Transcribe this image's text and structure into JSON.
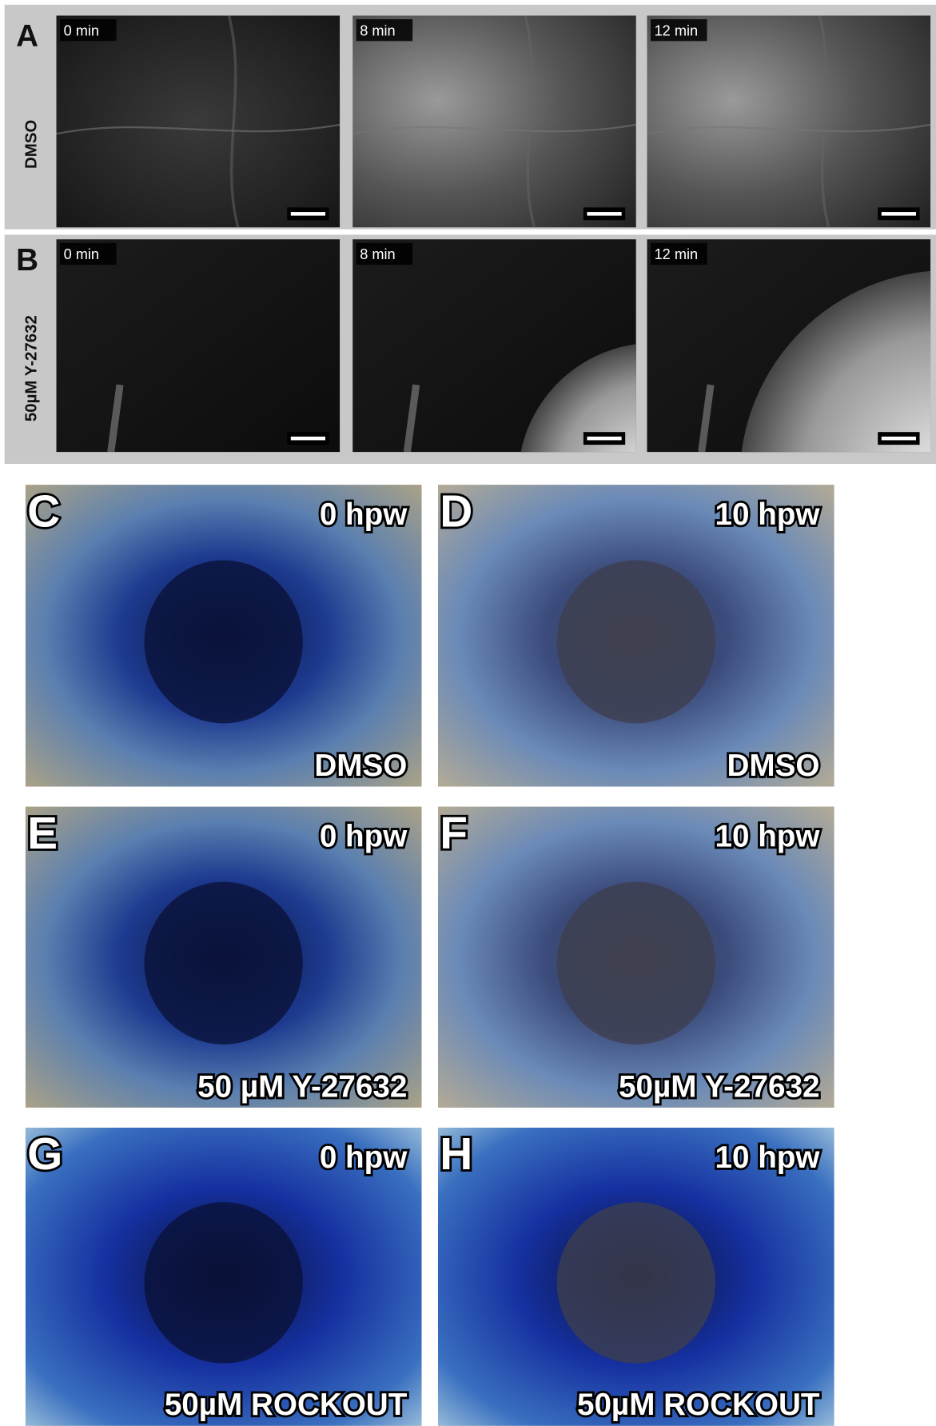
{
  "figure": {
    "live_panels": [
      {
        "label": "A",
        "condition": "DMSO",
        "frames": [
          "0 min",
          "8 min",
          "12 min"
        ]
      },
      {
        "label": "B",
        "condition": "50µM Y-27632",
        "frames": [
          "0 min",
          "8 min",
          "12 min"
        ]
      }
    ],
    "stain_panels": [
      {
        "label": "C",
        "time": "0 hpw",
        "treatment": "DMSO"
      },
      {
        "label": "D",
        "time": "10 hpw",
        "treatment": "DMSO"
      },
      {
        "label": "E",
        "time": "0 hpw",
        "treatment": "50 µM Y-27632"
      },
      {
        "label": "F",
        "time": "10 hpw",
        "treatment": "50µM Y-27632"
      },
      {
        "label": "G",
        "time": "0 hpw",
        "treatment": "50µM ROCKOUT"
      },
      {
        "label": "H",
        "time": "10 hpw",
        "treatment": "50µM ROCKOUT"
      }
    ]
  }
}
